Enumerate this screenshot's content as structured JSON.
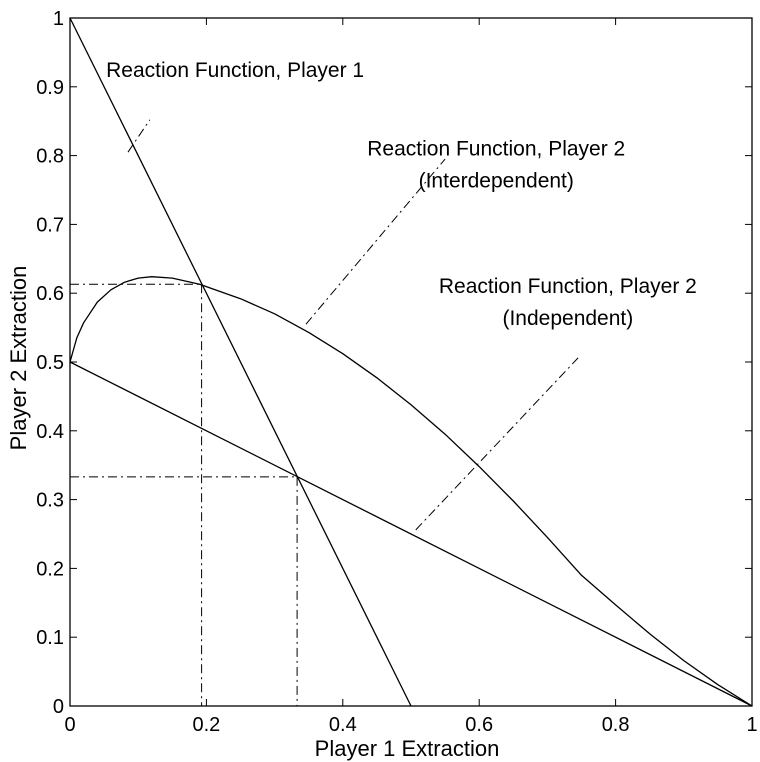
{
  "chart_data": {
    "type": "line",
    "title": "",
    "xlabel": "Player 1 Extraction",
    "ylabel": "Player 2 Extraction",
    "xlim": [
      0,
      1
    ],
    "ylim": [
      0,
      1
    ],
    "xticks": [
      0,
      0.2,
      0.4,
      0.6,
      0.8,
      1
    ],
    "yticks": [
      0,
      0.1,
      0.2,
      0.3,
      0.4,
      0.5,
      0.6,
      0.7,
      0.8,
      0.9,
      1
    ],
    "xtick_labels": [
      "0",
      "0.2",
      "0.4",
      "0.6",
      "0.8",
      "1"
    ],
    "ytick_labels": [
      "0",
      "0.1",
      "0.2",
      "0.3",
      "0.4",
      "0.5",
      "0.6",
      "0.7",
      "0.8",
      "0.9",
      "1"
    ],
    "grid": false,
    "legend": "none",
    "series": [
      {
        "style": "solid",
        "points": [
          [
            0,
            1
          ],
          [
            0.5,
            0
          ]
        ]
      },
      {
        "style": "solid",
        "points": [
          [
            0,
            0.5
          ],
          [
            1,
            0
          ]
        ]
      },
      {
        "style": "solid",
        "points": [
          [
            0,
            0.5
          ],
          [
            0.01,
            0.535
          ],
          [
            0.02,
            0.557
          ],
          [
            0.04,
            0.587
          ],
          [
            0.06,
            0.605
          ],
          [
            0.08,
            0.616
          ],
          [
            0.1,
            0.622
          ],
          [
            0.12,
            0.624
          ],
          [
            0.15,
            0.622
          ],
          [
            0.19,
            0.613
          ],
          [
            0.25,
            0.592
          ],
          [
            0.3,
            0.57
          ],
          [
            0.35,
            0.543
          ],
          [
            0.4,
            0.512
          ],
          [
            0.45,
            0.477
          ],
          [
            0.5,
            0.438
          ],
          [
            0.55,
            0.395
          ],
          [
            0.6,
            0.348
          ],
          [
            0.65,
            0.298
          ],
          [
            0.7,
            0.245
          ],
          [
            0.75,
            0.19
          ],
          [
            0.8,
            0.147
          ],
          [
            0.85,
            0.105
          ],
          [
            0.9,
            0.066
          ],
          [
            0.95,
            0.031
          ],
          [
            1,
            0
          ]
        ]
      }
    ],
    "reference_lines": [
      {
        "style": "dashdot",
        "points": [
          [
            0,
            0.613
          ],
          [
            0.193,
            0.613
          ]
        ]
      },
      {
        "style": "dashdot",
        "points": [
          [
            0.193,
            0.613
          ],
          [
            0.193,
            0
          ]
        ]
      },
      {
        "style": "dashdot",
        "points": [
          [
            0,
            0.333
          ],
          [
            0.333,
            0.333
          ]
        ]
      },
      {
        "style": "dashdot",
        "points": [
          [
            0.333,
            0.333
          ],
          [
            0.333,
            0
          ]
        ]
      }
    ],
    "annotations": [
      {
        "lines": [
          "Reaction Function, Player 1"
        ],
        "at": [
          0.053,
          0.914
        ],
        "align": "start",
        "pointer": [
          [
            0.085,
            0.805
          ],
          [
            0.117,
            0.852
          ]
        ]
      },
      {
        "lines": [
          "Reaction Function, Player 2",
          "(Interdependent)"
        ],
        "at": [
          0.625,
          0.8
        ],
        "align": "middle",
        "pointer": [
          [
            0.346,
            0.555
          ],
          [
            0.55,
            0.795
          ]
        ]
      },
      {
        "lines": [
          "Reaction Function, Player 2",
          "(Independent)"
        ],
        "at": [
          0.73,
          0.6
        ],
        "align": "middle",
        "pointer": [
          [
            0.507,
            0.256
          ],
          [
            0.745,
            0.506
          ]
        ]
      }
    ]
  }
}
